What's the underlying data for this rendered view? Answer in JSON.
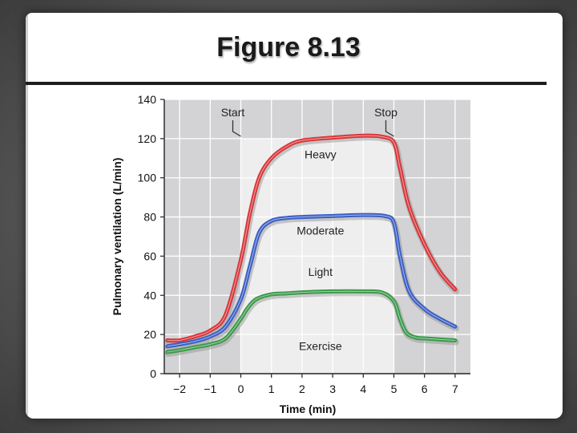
{
  "slide": {
    "title": "Figure 8.13"
  },
  "chart_data": {
    "type": "line",
    "title": "",
    "xlabel": "Time (min)",
    "ylabel": "Pulmonary ventilation (L/min)",
    "xlim": [
      -2.5,
      7.5
    ],
    "ylim": [
      0,
      140
    ],
    "xticks": [
      -2,
      -1,
      0,
      1,
      2,
      3,
      4,
      5,
      6,
      7
    ],
    "xtick_labels": [
      "−2",
      "−1",
      "0",
      "1",
      "2",
      "3",
      "4",
      "5",
      "6",
      "7"
    ],
    "yticks": [
      0,
      20,
      40,
      60,
      80,
      100,
      120,
      140
    ],
    "exercise_window": [
      0,
      5
    ],
    "markers": [
      {
        "label": "Start",
        "x": 0
      },
      {
        "label": "Stop",
        "x": 5
      }
    ],
    "series": [
      {
        "name": "Heavy",
        "color": "#d9363a",
        "x": [
          -2.4,
          -2,
          -1.5,
          -1,
          -0.5,
          0,
          0.3,
          0.6,
          1,
          1.5,
          2,
          3,
          4,
          4.6,
          5,
          5.2,
          5.5,
          6,
          6.5,
          7
        ],
        "y": [
          17,
          17,
          19,
          22,
          30,
          58,
          82,
          100,
          110,
          116,
          119,
          120.5,
          121.5,
          121,
          118,
          105,
          85,
          66,
          52,
          43
        ]
      },
      {
        "name": "Moderate",
        "color": "#3b5fc6",
        "x": [
          -2.4,
          -2,
          -1.5,
          -1,
          -0.5,
          0,
          0.3,
          0.6,
          1,
          1.5,
          2,
          3,
          4,
          4.7,
          5,
          5.2,
          5.5,
          6,
          6.5,
          7
        ],
        "y": [
          14,
          15,
          16.5,
          19,
          24,
          38,
          55,
          72,
          78,
          79.5,
          80,
          80.5,
          81,
          80.5,
          77,
          60,
          42,
          33,
          28,
          24
        ]
      },
      {
        "name": "Light",
        "color": "#3a9a4a",
        "x": [
          -2.4,
          -2,
          -1.5,
          -1,
          -0.5,
          0,
          0.2,
          0.5,
          1,
          1.5,
          2,
          3,
          4,
          4.6,
          5,
          5.2,
          5.4,
          5.7,
          6,
          7
        ],
        "y": [
          11,
          12,
          13.5,
          15,
          18,
          28,
          33,
          38,
          40.5,
          41,
          41.5,
          42,
          42,
          41.5,
          37,
          28,
          21,
          18.5,
          18,
          17
        ]
      }
    ],
    "annotations": [
      {
        "text": "Heavy",
        "x": 2.6,
        "y": 110
      },
      {
        "text": "Moderate",
        "x": 2.6,
        "y": 71
      },
      {
        "text": "Light",
        "x": 2.6,
        "y": 50
      },
      {
        "text": "Exercise",
        "x": 2.6,
        "y": 12
      }
    ]
  }
}
